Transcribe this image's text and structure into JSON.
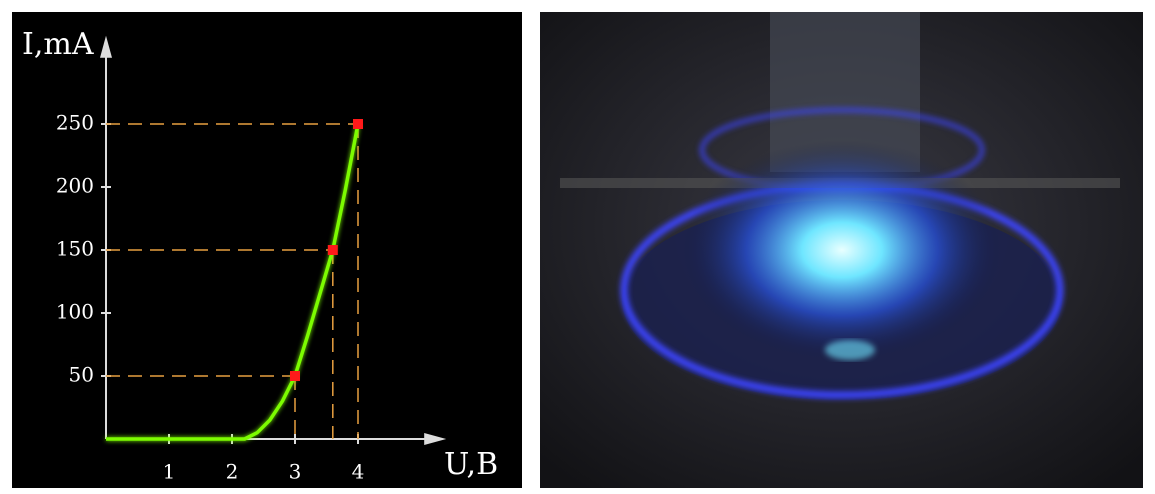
{
  "chart_data": {
    "type": "line",
    "y_label": "I,mA",
    "x_label": "U,B",
    "xlim": [
      0,
      5.4
    ],
    "ylim": [
      0,
      320
    ],
    "xticks": [
      1,
      2,
      3,
      4
    ],
    "yticks": [
      50,
      100,
      150,
      200,
      250
    ],
    "series": [
      {
        "color": "#7cfc00",
        "x": [
          0,
          0.5,
          1,
          1.5,
          2,
          2.2,
          2.4,
          2.6,
          2.8,
          3,
          3.2,
          3.4,
          3.6,
          3.8,
          4
        ],
        "values": [
          0,
          0,
          0,
          0,
          0,
          0,
          5,
          15,
          30,
          50,
          82,
          116,
          150,
          198,
          250
        ]
      },
      {
        "color": "#ff1a1a",
        "x": [
          3,
          3.6,
          4
        ],
        "values": [
          50,
          150,
          250
        ]
      }
    ]
  }
}
